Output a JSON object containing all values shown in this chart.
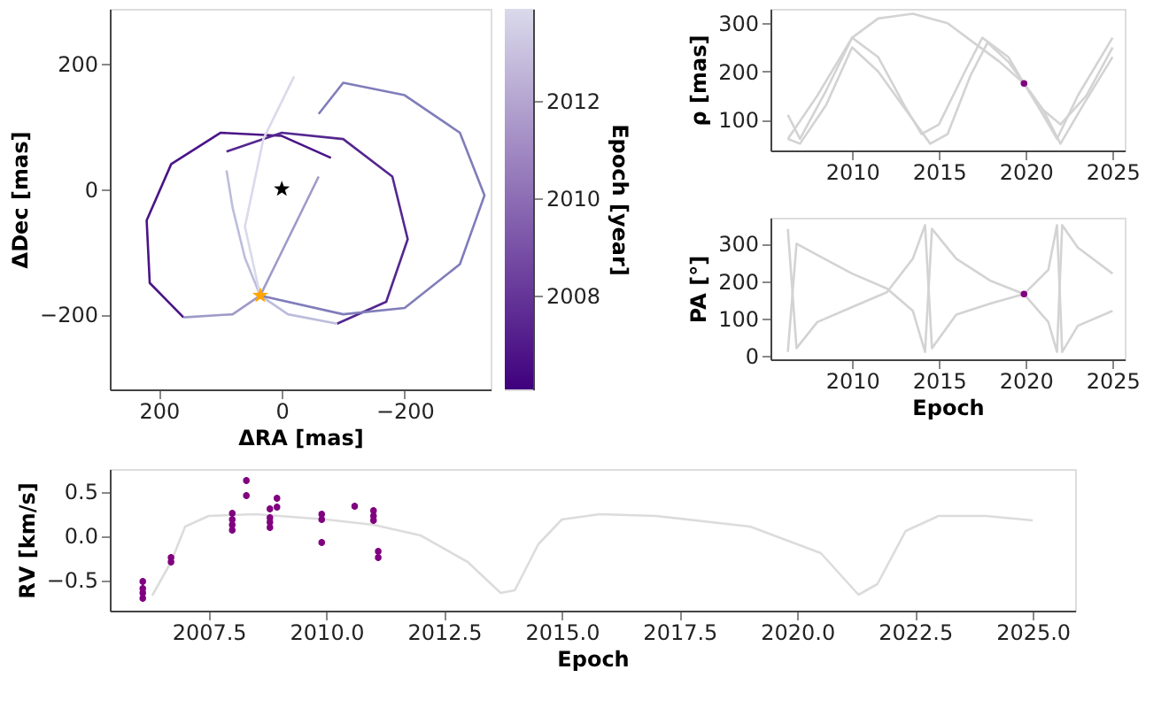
{
  "chart_data": [
    {
      "type": "line",
      "xlabel": "ΔRA [mas]",
      "ylabel": "ΔDec [mas]",
      "clabel": "Epoch [year]",
      "xlim": [
        280,
        -340
      ],
      "xticks": [
        200,
        0,
        -200
      ],
      "ylim": [
        -320,
        288
      ],
      "yticks": [
        -200,
        0,
        200
      ],
      "clim": [
        2006.07,
        2013.9
      ],
      "cticks": [
        2008,
        2010,
        2012
      ],
      "grid": false,
      "series": [
        {
          "color": "#4a1486",
          "x": [
            -80,
            0,
            100,
            180,
            220,
            215,
            160
          ],
          "values": [
            50,
            85,
            90,
            40,
            -50,
            -150,
            -205
          ]
        },
        {
          "color": "#9e9ac8",
          "x": [
            160,
            80,
            35,
            5,
            -30,
            -60
          ],
          "values": [
            -205,
            -200,
            -170,
            -110,
            -40,
            20
          ]
        },
        {
          "color": "#54278f",
          "x": [
            90,
            0,
            -100,
            -180,
            -205,
            -170,
            -90
          ],
          "values": [
            60,
            90,
            80,
            20,
            -80,
            -180,
            -215
          ]
        },
        {
          "color": "#bcbddc",
          "x": [
            -90,
            -10,
            35,
            60,
            80,
            90
          ],
          "values": [
            -215,
            -200,
            -170,
            -110,
            -30,
            30
          ]
        },
        {
          "color": "#807dba",
          "x": [
            -60,
            -100,
            -200,
            -290,
            -330,
            -290,
            -200,
            -100,
            35
          ],
          "values": [
            120,
            170,
            150,
            90,
            -10,
            -120,
            -190,
            -200,
            -170
          ]
        },
        {
          "color": "#dadaeb",
          "x": [
            35,
            60,
            30,
            -20
          ],
          "values": [
            -170,
            -60,
            80,
            180
          ]
        },
        {
          "type": "scatter",
          "marker": "star",
          "color": "#000000",
          "x": [
            0
          ],
          "values": [
            0
          ]
        },
        {
          "type": "scatter",
          "marker": "star",
          "color": "#ffa500",
          "x": [
            35
          ],
          "values": [
            -170
          ]
        }
      ]
    },
    {
      "type": "line",
      "ylabel": "ρ [mas]",
      "xlim": [
        2005.3,
        2025.7
      ],
      "xticks": [
        2010,
        2015,
        2020,
        2025
      ],
      "ylim": [
        36,
        330
      ],
      "yticks": [
        100,
        200,
        300
      ],
      "grid": false,
      "series": [
        {
          "color": "#d3d3d3",
          "x": [
            2006.3,
            2007,
            2008.5,
            2010,
            2011.5,
            2013,
            2014,
            2015,
            2016.5,
            2017.5,
            2019,
            2019.9,
            2021,
            2021.8,
            2023,
            2025
          ],
          "values": [
            110,
            60,
            160,
            270,
            230,
            130,
            70,
            90,
            200,
            270,
            230,
            175,
            110,
            60,
            150,
            270
          ]
        },
        {
          "color": "#d3d3d3",
          "x": [
            2006.3,
            2007,
            2008.5,
            2010,
            2011.5,
            2013.5,
            2014.5,
            2015.5,
            2016.8,
            2017.8,
            2019,
            2019.9,
            2021,
            2022,
            2023.3,
            2025
          ],
          "values": [
            60,
            50,
            130,
            250,
            200,
            100,
            50,
            70,
            190,
            260,
            220,
            175,
            120,
            50,
            130,
            230
          ]
        },
        {
          "color": "#d3d3d3",
          "x": [
            2006.3,
            2008,
            2010,
            2011.5,
            2013.5,
            2015.5,
            2017,
            2018.5,
            2019.9,
            2021,
            2022,
            2023.5,
            2025
          ],
          "values": [
            60,
            150,
            270,
            310,
            320,
            300,
            260,
            220,
            175,
            120,
            90,
            150,
            250
          ]
        },
        {
          "type": "scatter",
          "marker": "circle",
          "color": "#800080",
          "x": [
            2019.9
          ],
          "values": [
            175
          ]
        }
      ]
    },
    {
      "type": "line",
      "xlabel": "Epoch",
      "ylabel": "PA [°]",
      "xlim": [
        2005.3,
        2025.7
      ],
      "xticks": [
        2010,
        2015,
        2020,
        2025
      ],
      "ylim": [
        -10,
        370
      ],
      "yticks": [
        0,
        100,
        200,
        300
      ],
      "grid": false,
      "series": [
        {
          "color": "#d3d3d3",
          "x": [
            2006.3,
            2006.8,
            2008,
            2010,
            2012,
            2013.5,
            2014.2,
            2014.6,
            2016,
            2018,
            2019.9,
            2021.3,
            2021.8,
            2022.1,
            2023,
            2025
          ],
          "values": [
            340,
            20,
            90,
            130,
            170,
            260,
            350,
            20,
            110,
            140,
            165,
            230,
            350,
            10,
            80,
            120
          ]
        },
        {
          "color": "#d3d3d3",
          "x": [
            2006.3,
            2006.8,
            2008,
            2010,
            2012,
            2013.5,
            2014.2,
            2014.6,
            2016,
            2018,
            2019.9,
            2021.3,
            2021.8,
            2022.1,
            2023,
            2025
          ],
          "values": [
            10,
            300,
            270,
            220,
            180,
            120,
            10,
            340,
            260,
            200,
            165,
            90,
            10,
            350,
            290,
            220
          ]
        },
        {
          "type": "scatter",
          "marker": "circle",
          "color": "#800080",
          "x": [
            2019.9
          ],
          "values": [
            165
          ]
        }
      ]
    },
    {
      "type": "line",
      "xlabel": "Epoch",
      "ylabel": "RV [km/s]",
      "xlim": [
        2005.4,
        2025.9
      ],
      "xticks": [
        {
          "value": 2007.5,
          "label": "2007.5"
        },
        {
          "value": 2010,
          "label": "2010.0"
        },
        {
          "value": 2012.5,
          "label": "2012.5"
        },
        {
          "value": 2015,
          "label": "2015.0"
        },
        {
          "value": 2017.5,
          "label": "2017.5"
        },
        {
          "value": 2020,
          "label": "2020.0"
        },
        {
          "value": 2022.5,
          "label": "2022.5"
        },
        {
          "value": 2025,
          "label": "2025.0"
        }
      ],
      "ylim": [
        -0.85,
        0.75
      ],
      "yticks": [
        -0.5,
        {
          "value": 0,
          "label": "0.0"
        },
        0.5
      ],
      "grid": false,
      "series": [
        {
          "color": "#dcdcdc",
          "x": [
            2006.3,
            2006.7,
            2007,
            2007.5,
            2008.5,
            2010,
            2011,
            2012,
            2013,
            2013.7,
            2014,
            2014.5,
            2015,
            2015.8,
            2017,
            2019,
            2020.5,
            2021.3,
            2021.7,
            2022.3,
            2023,
            2024,
            2025
          ],
          "values": [
            -0.68,
            -0.3,
            0.1,
            0.22,
            0.24,
            0.18,
            0.12,
            0.0,
            -0.3,
            -0.65,
            -0.62,
            -0.1,
            0.18,
            0.24,
            0.22,
            0.1,
            -0.2,
            -0.67,
            -0.55,
            0.05,
            0.22,
            0.22,
            0.17
          ]
        },
        {
          "type": "scatter",
          "marker": "circle",
          "color": "#800080",
          "x": [
            2006.1,
            2006.1,
            2006.1,
            2006.1,
            2006.7,
            2006.7,
            2008.0,
            2008.0,
            2008.0,
            2008.0,
            2008.3,
            2008.3,
            2008.8,
            2008.8,
            2008.8,
            2008.8,
            2008.95,
            2008.95,
            2009.9,
            2009.9,
            2009.9,
            2010.6,
            2011.0,
            2011.0,
            2011.0,
            2011.1,
            2011.1
          ],
          "values": [
            -0.52,
            -0.6,
            -0.65,
            -0.71,
            -0.25,
            -0.3,
            0.25,
            0.18,
            0.12,
            0.06,
            0.62,
            0.45,
            0.3,
            0.2,
            0.15,
            0.09,
            0.42,
            0.32,
            0.24,
            0.18,
            -0.08,
            0.33,
            0.28,
            0.22,
            0.17,
            -0.18,
            -0.25
          ],
          "errors": [
            0.04,
            0.04,
            0.04,
            0.04,
            0.04,
            0.04,
            0.04,
            0.04,
            0.04,
            0.04,
            0.04,
            0.04,
            0.04,
            0.04,
            0.04,
            0.04,
            0.04,
            0.04,
            0.04,
            0.04,
            0.04,
            0.04,
            0.04,
            0.04,
            0.04,
            0.04,
            0.04
          ]
        }
      ]
    }
  ]
}
